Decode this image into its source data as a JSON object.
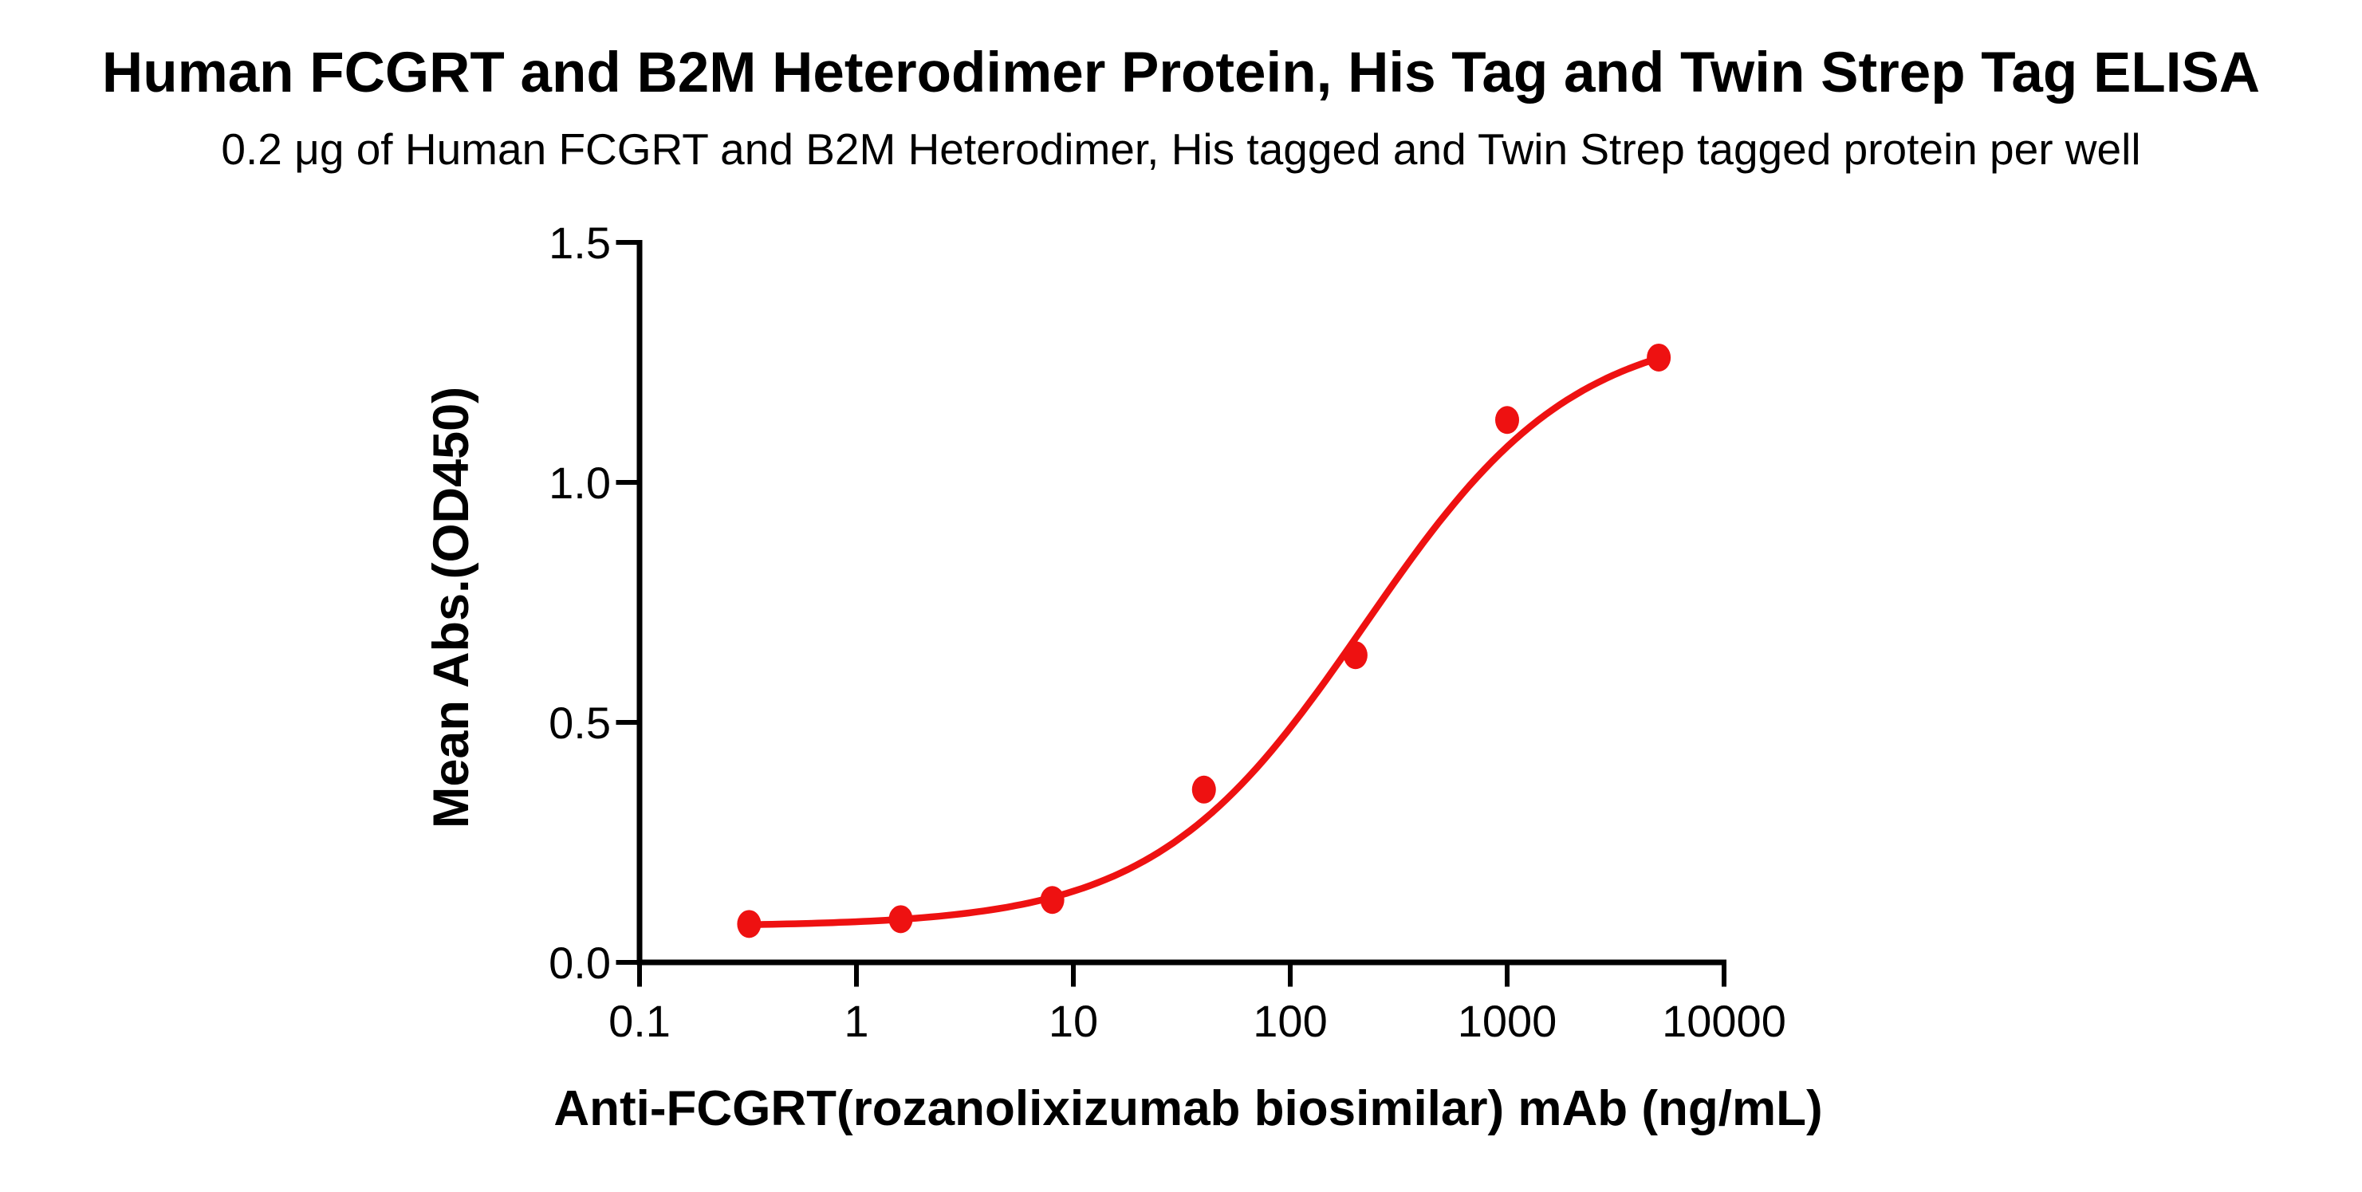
{
  "chart_data": {
    "type": "scatter",
    "title": "Human FCGRT and B2M Heterodimer Protein, His Tag and Twin Strep Tag ELISA",
    "subtitle": "0.2 μg of Human FCGRT and B2M Heterodimer, His tagged and Twin Strep tagged protein per well",
    "xlabel": "Anti-FCGRT(rozanolixizumab biosimilar) mAb (ng/mL)",
    "ylabel": "Mean Abs.(OD450)",
    "x_scale": "log10",
    "xlim": [
      0.1,
      10000
    ],
    "ylim": [
      0.0,
      1.5
    ],
    "x_ticks": [
      0.1,
      1,
      10,
      100,
      1000,
      10000
    ],
    "x_tick_labels": [
      "0.1",
      "1",
      "10",
      "100",
      "1000",
      "10000"
    ],
    "y_ticks": [
      0.0,
      0.5,
      1.0,
      1.5
    ],
    "y_tick_labels": [
      "0.0",
      "0.5",
      "1.0",
      "1.5"
    ],
    "grid": false,
    "legend": "none",
    "series": [
      {
        "x": [
          0.32,
          1.6,
          8,
          40,
          200,
          1000,
          5000
        ],
        "y": [
          0.08,
          0.09,
          0.13,
          0.36,
          0.64,
          1.13,
          1.26
        ],
        "marker": "circle",
        "color": "#ee1111"
      }
    ],
    "fit_curve": {
      "model": "4PL",
      "bottom": 0.075,
      "top": 1.33,
      "ec50": 220,
      "hill": 0.9,
      "x_range": [
        0.32,
        5000
      ],
      "color": "#ee1111"
    }
  },
  "colors": {
    "accent_red": "#ee1111",
    "axis_black": "#000000",
    "background": "#ffffff"
  }
}
